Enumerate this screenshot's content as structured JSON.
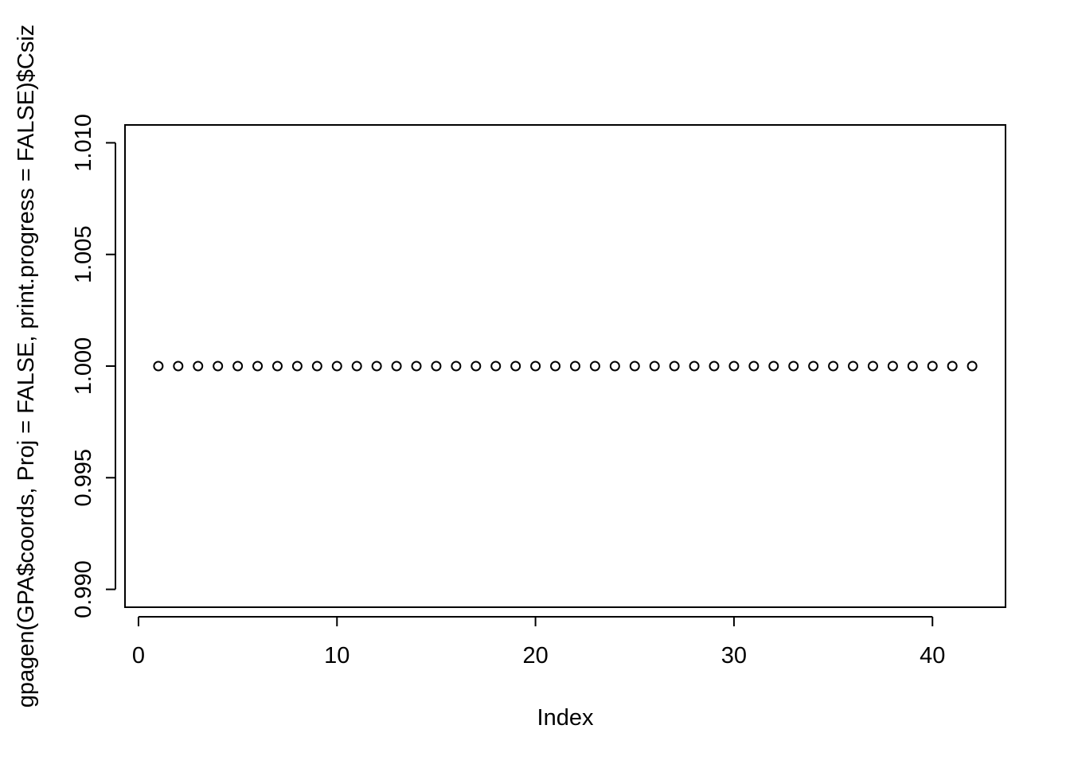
{
  "chart_data": {
    "type": "scatter",
    "xlabel": "Index",
    "ylabel": "gpagen(GPA$coords, Proj = FALSE, print.progress = FALSE)$Csiz",
    "x": [
      1,
      2,
      3,
      4,
      5,
      6,
      7,
      8,
      9,
      10,
      11,
      12,
      13,
      14,
      15,
      16,
      17,
      18,
      19,
      20,
      21,
      22,
      23,
      24,
      25,
      26,
      27,
      28,
      29,
      30,
      31,
      32,
      33,
      34,
      35,
      36,
      37,
      38,
      39,
      40,
      41,
      42
    ],
    "y": [
      1,
      1,
      1,
      1,
      1,
      1,
      1,
      1,
      1,
      1,
      1,
      1,
      1,
      1,
      1,
      1,
      1,
      1,
      1,
      1,
      1,
      1,
      1,
      1,
      1,
      1,
      1,
      1,
      1,
      1,
      1,
      1,
      1,
      1,
      1,
      1,
      1,
      1,
      1,
      1,
      1,
      1
    ],
    "xlim": [
      -0.68,
      43.68
    ],
    "ylim": [
      0.9892,
      1.0108
    ],
    "x_ticks": [
      0,
      10,
      20,
      30,
      40
    ],
    "x_tick_labels": [
      "0",
      "10",
      "20",
      "30",
      "40"
    ],
    "y_ticks": [
      0.99,
      0.995,
      1.0,
      1.005,
      1.01
    ],
    "y_tick_labels": [
      "0.990",
      "0.995",
      "1.000",
      "1.005",
      "1.010"
    ],
    "marker": "open-circle",
    "grid": false,
    "legend": "none",
    "colors": {
      "points": "#000000",
      "axes": "#000000",
      "background": "#ffffff"
    }
  }
}
